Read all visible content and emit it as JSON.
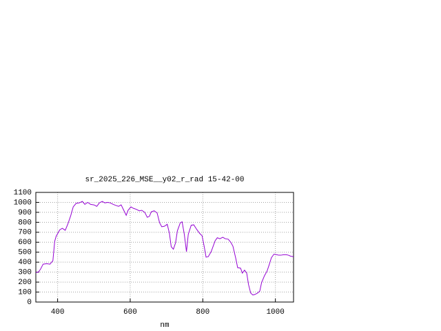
{
  "chart_data": {
    "type": "line",
    "title": "sr_2025_226_MSE__y02_r_rad 15-42-00",
    "x_label": "nm",
    "xlim": [
      340,
      1050
    ],
    "xticks": [
      400,
      600,
      800,
      1000
    ],
    "ylim": [
      0,
      1100
    ],
    "yticks": [
      0,
      100,
      200,
      300,
      400,
      500,
      600,
      700,
      800,
      900,
      1000,
      1100
    ],
    "grid": true,
    "series": [
      {
        "color": "#9400d3",
        "x": [
          340,
          347,
          353,
          360,
          370,
          379,
          387,
          392,
          396,
          406,
          413,
          421,
          428,
          436,
          443,
          451,
          460,
          468,
          475,
          483,
          491,
          500,
          508,
          515,
          523,
          530,
          538,
          545,
          553,
          560,
          568,
          575,
          583,
          589,
          594,
          602,
          609,
          617,
          625,
          632,
          640,
          647,
          653,
          658,
          666,
          674,
          681,
          687,
          694,
          702,
          708,
          713,
          719,
          725,
          730,
          738,
          743,
          749,
          755,
          760,
          768,
          775,
          783,
          791,
          798,
          804,
          809,
          815,
          823,
          828,
          834,
          840,
          847,
          855,
          862,
          870,
          877,
          883,
          891,
          896,
          904,
          909,
          915,
          921,
          926,
          932,
          938,
          943,
          951,
          957,
          962,
          970,
          977,
          983,
          989,
          996,
          1004,
          1009,
          1015,
          1023,
          1030,
          1036,
          1042,
          1050
        ],
        "values": [
          297,
          300,
          330,
          380,
          385,
          380,
          415,
          610,
          660,
          725,
          740,
          720,
          780,
          865,
          955,
          990,
          995,
          1010,
          980,
          1000,
          980,
          975,
          960,
          995,
          1010,
          995,
          1000,
          995,
          980,
          970,
          960,
          975,
          915,
          870,
          920,
          955,
          940,
          930,
          915,
          920,
          900,
          850,
          860,
          905,
          915,
          895,
          795,
          755,
          760,
          780,
          690,
          555,
          530,
          595,
          715,
          795,
          805,
          680,
          505,
          680,
          770,
          775,
          730,
          690,
          665,
          555,
          450,
          455,
          505,
          555,
          615,
          645,
          635,
          650,
          635,
          630,
          600,
          560,
          435,
          345,
          340,
          290,
          320,
          290,
          175,
          90,
          70,
          75,
          90,
          110,
          195,
          265,
          310,
          375,
          445,
          480,
          475,
          470,
          470,
          475,
          475,
          470,
          460,
          455
        ]
      }
    ]
  }
}
